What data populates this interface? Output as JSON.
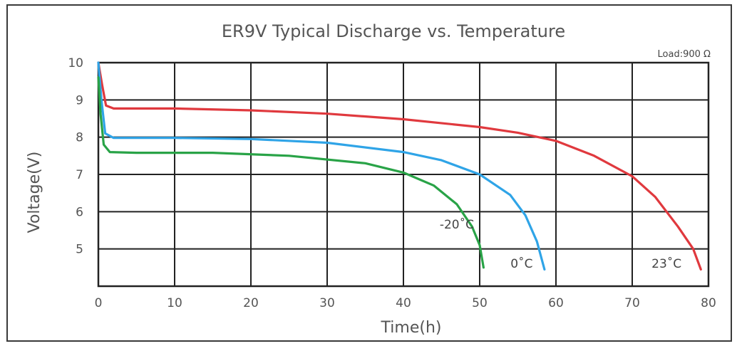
{
  "chart_data": {
    "type": "line",
    "title": "ER9V Typical Discharge vs. Temperature",
    "subtitle": "Load:900 Ω",
    "xlabel": "Time(h)",
    "ylabel": "Voltage(V)",
    "xlim": [
      0,
      80
    ],
    "ylim": [
      4,
      10
    ],
    "xticks": [
      0,
      10,
      20,
      30,
      40,
      50,
      60,
      70,
      80
    ],
    "yticks": [
      5,
      6,
      7,
      8,
      9,
      10
    ],
    "grid": true,
    "series": [
      {
        "name": "23˚C",
        "color": "#e0393e",
        "points": [
          [
            0,
            10
          ],
          [
            0.5,
            9.4
          ],
          [
            1,
            8.85
          ],
          [
            2,
            8.77
          ],
          [
            10,
            8.77
          ],
          [
            20,
            8.72
          ],
          [
            30,
            8.63
          ],
          [
            40,
            8.48
          ],
          [
            50,
            8.27
          ],
          [
            55,
            8.12
          ],
          [
            60,
            7.9
          ],
          [
            65,
            7.5
          ],
          [
            70,
            6.95
          ],
          [
            73,
            6.4
          ],
          [
            76,
            5.6
          ],
          [
            78,
            5.0
          ],
          [
            79,
            4.45
          ]
        ]
      },
      {
        "name": "0˚C",
        "color": "#2fa4e7",
        "points": [
          [
            0,
            10
          ],
          [
            0.4,
            9.0
          ],
          [
            0.9,
            8.1
          ],
          [
            2,
            7.98
          ],
          [
            10,
            7.98
          ],
          [
            20,
            7.95
          ],
          [
            30,
            7.85
          ],
          [
            40,
            7.6
          ],
          [
            45,
            7.38
          ],
          [
            50,
            7.0
          ],
          [
            54,
            6.45
          ],
          [
            56,
            5.9
          ],
          [
            57.5,
            5.2
          ],
          [
            58.5,
            4.45
          ]
        ]
      },
      {
        "name": "-20˚C",
        "color": "#29a347",
        "points": [
          [
            0,
            9.6
          ],
          [
            0.3,
            8.6
          ],
          [
            0.7,
            7.8
          ],
          [
            1.5,
            7.6
          ],
          [
            5,
            7.58
          ],
          [
            15,
            7.58
          ],
          [
            25,
            7.5
          ],
          [
            35,
            7.3
          ],
          [
            40,
            7.05
          ],
          [
            44,
            6.7
          ],
          [
            47,
            6.2
          ],
          [
            49,
            5.6
          ],
          [
            50,
            5.1
          ],
          [
            50.5,
            4.5
          ]
        ]
      }
    ],
    "annotations": [
      {
        "text": "-20˚C",
        "x": 47,
        "y": 5.55
      },
      {
        "text": "0˚C",
        "x": 55.5,
        "y": 4.5
      },
      {
        "text": "23˚C",
        "x": 74.5,
        "y": 4.5
      }
    ]
  }
}
